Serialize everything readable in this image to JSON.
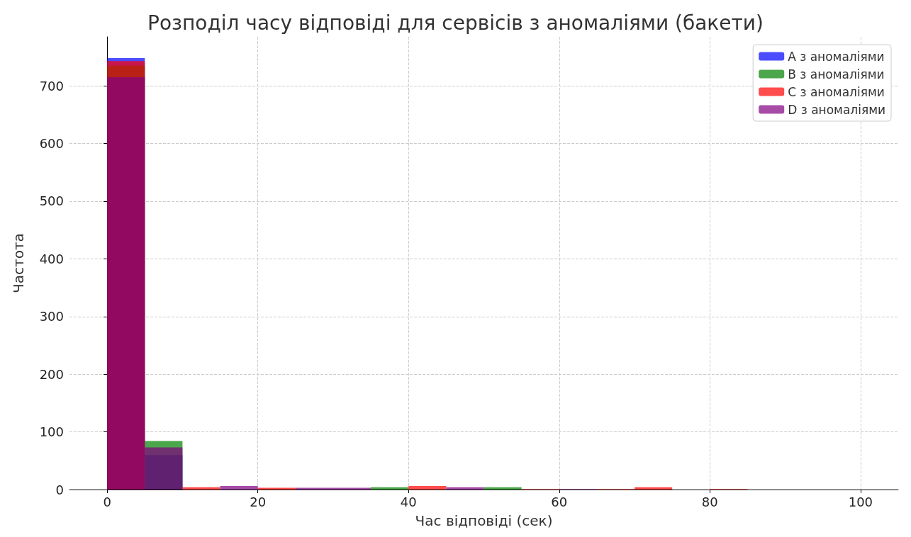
{
  "chart_data": {
    "type": "histogram",
    "title": "Розподіл часу відповіді для сервісів з аномаліями (бакети)",
    "xlabel": "Час відповіді (сек)",
    "ylabel": "Частота",
    "bins": [
      0,
      5,
      10,
      15,
      20,
      25,
      30,
      35,
      40,
      45,
      50,
      55,
      60,
      65,
      70,
      75,
      80,
      85,
      90,
      95,
      100
    ],
    "series": [
      {
        "name": "A з аномаліями",
        "color": "#0000ff",
        "values": [
          748,
          60,
          null,
          null,
          null,
          null,
          null,
          null,
          null,
          null,
          null,
          null,
          null,
          null,
          null,
          0,
          null,
          0,
          0,
          0
        ]
      },
      {
        "name": "B з аномаліями",
        "color": "#008000",
        "values": [
          735,
          84,
          null,
          null,
          null,
          null,
          null,
          4,
          null,
          null,
          4,
          null,
          null,
          null,
          null,
          null,
          null,
          null,
          null,
          null
        ]
      },
      {
        "name": "C з аномаліями",
        "color": "#ff0000",
        "values": [
          743,
          null,
          4,
          null,
          3,
          null,
          null,
          null,
          6,
          null,
          null,
          1,
          null,
          1,
          4,
          null,
          1,
          null,
          null,
          null
        ]
      },
      {
        "name": "D з аномаліями",
        "color": "#800080",
        "values": [
          715,
          73,
          null,
          6,
          null,
          3,
          3,
          null,
          null,
          4,
          null,
          null,
          1,
          null,
          null,
          null,
          null,
          null,
          null,
          null
        ]
      }
    ],
    "xlim": [
      -5,
      105
    ],
    "xticks": [
      0,
      20,
      40,
      60,
      80,
      100
    ],
    "ylim": [
      0,
      785
    ],
    "yticks": [
      0,
      100,
      200,
      300,
      400,
      500,
      600,
      700
    ],
    "grid": true,
    "legend": "top right"
  }
}
